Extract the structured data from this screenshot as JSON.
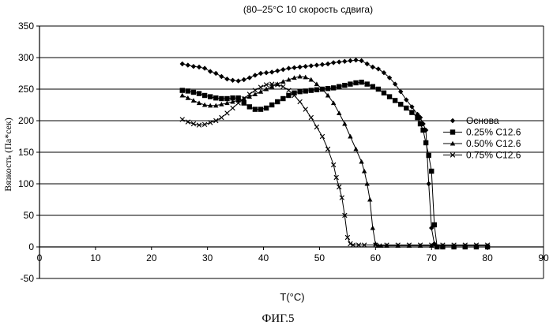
{
  "figure_caption": "ФИГ.5",
  "chart_data": {
    "type": "scatter",
    "title": "(80–25°C 10 скорость сдвига)",
    "xlabel": "T(°C)",
    "ylabel": "Вязкость (Па*сек)",
    "xlim": [
      0,
      90
    ],
    "ylim": [
      -50,
      350
    ],
    "xticks": [
      0,
      10,
      20,
      30,
      40,
      50,
      60,
      70,
      80,
      90
    ],
    "yticks": [
      -50,
      0,
      50,
      100,
      150,
      200,
      250,
      300,
      350
    ],
    "grid": "horizontal",
    "legend_position": "right",
    "series": [
      {
        "name": "Основа",
        "marker": "diamond",
        "x": [
          25.5,
          26.5,
          27.5,
          28.5,
          29.5,
          30.5,
          31.5,
          32.5,
          33.5,
          34.5,
          35.5,
          36.5,
          37.5,
          38.5,
          39.5,
          40.5,
          41.5,
          42.5,
          43.5,
          44.5,
          45.5,
          46.5,
          47.5,
          48.5,
          49.5,
          50.5,
          51.5,
          52.5,
          53.5,
          54.5,
          55.5,
          56.5,
          57.5,
          58.5,
          59.5,
          60.5,
          61.5,
          62.5,
          63.5,
          64.5,
          65.5,
          66.5,
          67.5,
          68.0,
          68.5,
          69.0,
          69.5,
          70.0,
          70.5,
          71.0,
          72,
          74,
          76,
          78,
          80
        ],
        "y": [
          290,
          288,
          286,
          285,
          283,
          278,
          275,
          270,
          266,
          264,
          263,
          265,
          268,
          272,
          275,
          276,
          277,
          279,
          281,
          283,
          284,
          285,
          286,
          287,
          288,
          289,
          290,
          292,
          293,
          294,
          295,
          296,
          295,
          290,
          285,
          282,
          276,
          268,
          258,
          246,
          233,
          222,
          210,
          205,
          195,
          185,
          100,
          30,
          5,
          0,
          0,
          0,
          0,
          0,
          0
        ]
      },
      {
        "name": "0.25% С12.6",
        "marker": "square",
        "x": [
          25.5,
          26.5,
          27.5,
          28.5,
          29.5,
          30.5,
          31.5,
          32.5,
          33.5,
          34.5,
          35.5,
          36.5,
          37.5,
          38.5,
          39.5,
          40.5,
          41.5,
          42.5,
          43.5,
          44.5,
          45.5,
          46.5,
          47.5,
          48.5,
          49.5,
          50.5,
          51.5,
          52.5,
          53.5,
          54.5,
          55.5,
          56.5,
          57.5,
          58.5,
          59.5,
          60.5,
          61.5,
          62.5,
          63.5,
          64.5,
          65.5,
          66.5,
          67.5,
          68.0,
          68.5,
          69.0,
          69.5,
          70.0,
          70.5,
          71.0,
          72,
          74,
          76,
          78,
          80
        ],
        "y": [
          248,
          247,
          245,
          243,
          240,
          238,
          236,
          235,
          235,
          236,
          236,
          228,
          222,
          218,
          218,
          220,
          225,
          230,
          235,
          240,
          244,
          246,
          247,
          248,
          249,
          250,
          251,
          252,
          254,
          256,
          258,
          260,
          261,
          258,
          254,
          250,
          244,
          238,
          232,
          226,
          220,
          213,
          205,
          195,
          185,
          165,
          145,
          120,
          35,
          0,
          0,
          0,
          0,
          0,
          0
        ]
      },
      {
        "name": "0.50% С12.6",
        "marker": "triangle",
        "x": [
          25.5,
          26.5,
          27.5,
          28.5,
          29.5,
          30.5,
          31.5,
          32.5,
          33.5,
          34.5,
          35.5,
          36.5,
          37.5,
          38.5,
          39.5,
          40.5,
          41.5,
          42.5,
          43.5,
          44.5,
          45.5,
          46.5,
          47.5,
          48.5,
          49.5,
          50.5,
          51.5,
          52.5,
          53.5,
          54.5,
          55.5,
          56.5,
          57.5,
          58.0,
          58.5,
          59.0,
          59.5,
          60.0,
          60.5,
          61,
          62,
          64,
          66,
          68,
          70,
          72,
          74,
          76,
          78,
          80
        ],
        "y": [
          240,
          236,
          232,
          228,
          225,
          224,
          224,
          226,
          228,
          230,
          232,
          235,
          238,
          242,
          246,
          250,
          254,
          258,
          262,
          265,
          268,
          270,
          269,
          265,
          258,
          250,
          240,
          228,
          212,
          195,
          175,
          155,
          135,
          120,
          100,
          75,
          30,
          5,
          2,
          2,
          2,
          2,
          2,
          2,
          2,
          2,
          2,
          2,
          2,
          2
        ]
      },
      {
        "name": "0.75% С12.6",
        "marker": "x",
        "x": [
          25.5,
          26.5,
          27.5,
          28.5,
          29.5,
          30.5,
          31.5,
          32.5,
          33.5,
          34.5,
          35.5,
          36.5,
          37.5,
          38.5,
          39.5,
          40.5,
          41.5,
          42.5,
          43.5,
          44.5,
          45.5,
          46.5,
          47.5,
          48.5,
          49.5,
          50.5,
          51.5,
          52.5,
          53.0,
          53.5,
          54.0,
          54.5,
          55.0,
          55.5,
          56,
          57,
          58,
          60,
          62,
          64,
          66,
          68,
          70,
          72,
          74,
          76,
          78,
          80
        ],
        "y": [
          202,
          198,
          195,
          193,
          194,
          197,
          200,
          205,
          212,
          220,
          228,
          235,
          242,
          248,
          253,
          257,
          258,
          257,
          254,
          248,
          240,
          230,
          218,
          205,
          190,
          175,
          155,
          130,
          110,
          95,
          78,
          50,
          15,
          5,
          3,
          3,
          3,
          3,
          3,
          3,
          3,
          3,
          3,
          3,
          3,
          3,
          3,
          3
        ]
      }
    ]
  }
}
